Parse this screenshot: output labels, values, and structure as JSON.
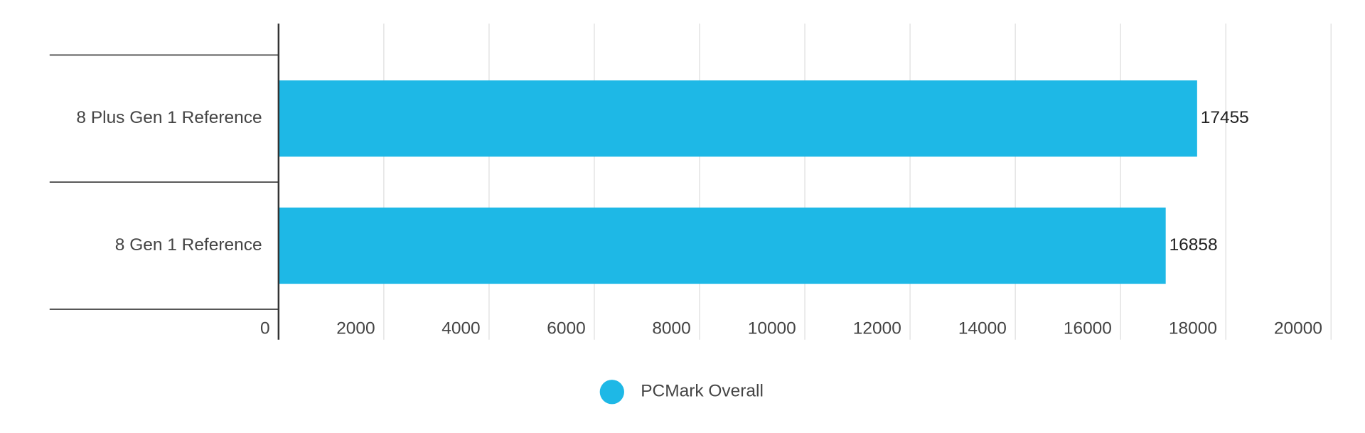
{
  "chart_data": {
    "type": "hbar",
    "categories": [
      "8 Plus Gen 1 Reference",
      "8 Gen 1 Reference"
    ],
    "series": [
      {
        "name": "PCMark Overall",
        "color": "#1eb8e6",
        "values": [
          17455,
          16858
        ]
      }
    ],
    "xlim": [
      0,
      20000
    ],
    "xticks": [
      0,
      2000,
      4000,
      6000,
      8000,
      10000,
      12000,
      14000,
      16000,
      18000,
      20000
    ],
    "grid": true,
    "legend": "bottom"
  }
}
